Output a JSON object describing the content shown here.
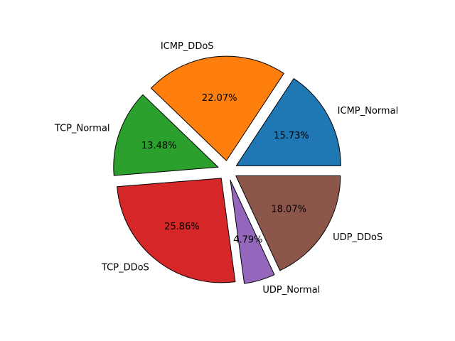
{
  "chart_data": {
    "type": "pie",
    "title": "",
    "start_angle_deg": 0,
    "direction": "counterclockwise",
    "legend": "none",
    "edge_color": "#000000",
    "slices": [
      {
        "label": "ICMP_Normal",
        "value": 15.73,
        "pct_text": "15.73%",
        "color": "#1f77b4",
        "exploded": true
      },
      {
        "label": "ICMP_DDoS",
        "value": 22.07,
        "pct_text": "22.07%",
        "color": "#ff7f0e",
        "exploded": true
      },
      {
        "label": "TCP_Normal",
        "value": 13.48,
        "pct_text": "13.48%",
        "color": "#2ca02c",
        "exploded": true
      },
      {
        "label": "TCP_DDoS",
        "value": 25.86,
        "pct_text": "25.86%",
        "color": "#d62728",
        "exploded": true
      },
      {
        "label": "UDP_Normal",
        "value": 4.79,
        "pct_text": "4.79%",
        "color": "#9467bd",
        "exploded": true
      },
      {
        "label": "UDP_DDoS",
        "value": 18.07,
        "pct_text": "18.07%",
        "color": "#8c564b",
        "exploded": true
      }
    ]
  }
}
